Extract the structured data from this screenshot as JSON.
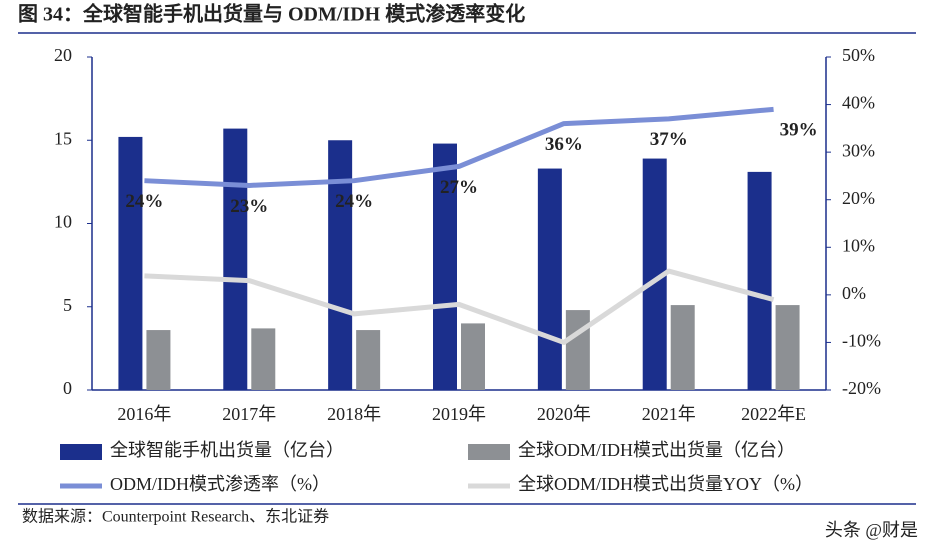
{
  "chart_data": {
    "type": "bar",
    "title": "图 34：全球智能手机出货量与 ODM/IDH 模式渗透率变化",
    "source": "数据来源：Counterpoint Research、东北证券",
    "watermark": "头条 @财是",
    "categories": [
      "2016年",
      "2017年",
      "2018年",
      "2019年",
      "2020年",
      "2021年",
      "2022年E"
    ],
    "series": [
      {
        "name": "全球智能手机出货量（亿台）",
        "type": "bar",
        "color": "#1b2f8c",
        "values": [
          15.2,
          15.7,
          15.0,
          14.8,
          13.3,
          13.9,
          13.1
        ]
      },
      {
        "name": "全球ODM/IDH模式出货量（亿台）",
        "type": "bar",
        "color": "#8d9094",
        "values": [
          3.6,
          3.7,
          3.6,
          4.0,
          4.8,
          5.1,
          5.1
        ]
      },
      {
        "name": "ODM/IDH模式渗透率（%）",
        "type": "line",
        "axis": "y2",
        "color": "#7a8ed6",
        "values": [
          24,
          23,
          24,
          27,
          36,
          37,
          39
        ],
        "value_labels": [
          "24%",
          "23%",
          "24%",
          "27%",
          "36%",
          "37%",
          "39%"
        ]
      },
      {
        "name": "全球ODM/IDH模式出货量YOY（%）",
        "type": "line",
        "axis": "y2",
        "color": "#d9d9d9",
        "values": [
          4,
          3,
          -4,
          -2,
          -10,
          5,
          -1
        ]
      }
    ],
    "ylim": [
      0,
      20
    ],
    "yticks": [
      0,
      5,
      10,
      15,
      20
    ],
    "y2lim": [
      -20,
      50
    ],
    "y2ticks": [
      {
        "value": -20,
        "label": "-20%"
      },
      {
        "value": -10,
        "label": "-10%"
      },
      {
        "value": 0,
        "label": "0%"
      },
      {
        "value": 10,
        "label": "10%"
      },
      {
        "value": 20,
        "label": "20%"
      },
      {
        "value": 30,
        "label": "30%"
      },
      {
        "value": 40,
        "label": "40%"
      },
      {
        "value": 50,
        "label": "50%"
      }
    ],
    "grid": false
  }
}
